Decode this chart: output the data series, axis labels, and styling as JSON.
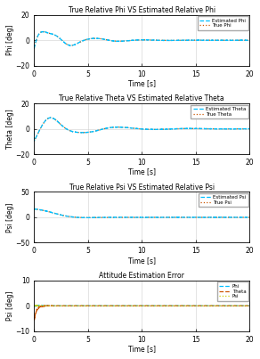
{
  "title1": "True Relative Phi VS Estimated Relative Phi",
  "title2": "True Relative Theta VS Estimated Relative Theta",
  "title3": "True Relative Psi VS Estimated Relative Psi",
  "title4": "Attitude Estimation Error",
  "ylabel1": "Phi [deg]",
  "ylabel2": "Theta [deg]",
  "ylabel3": "Psi [deg]",
  "ylabel4": "Psi [deg]",
  "xlabel": "Time [s]",
  "xlim": [
    0,
    20
  ],
  "ylim1": [
    -20,
    20
  ],
  "ylim2": [
    -20,
    20
  ],
  "ylim3": [
    -50,
    50
  ],
  "ylim4": [
    -10,
    10
  ],
  "yticks1": [
    -20,
    0,
    20
  ],
  "yticks2": [
    -20,
    0,
    20
  ],
  "yticks3": [
    -50,
    0,
    50
  ],
  "yticks4": [
    -10,
    0,
    10
  ],
  "xticks": [
    0,
    5,
    10,
    15,
    20
  ],
  "estimated_color": "#00BFFF",
  "true_color": "#CC5500",
  "error_phi_color": "#00BFFF",
  "error_theta_color": "#CC5500",
  "error_psi_color": "#CCCC00",
  "bg_color": "#FFFFFF",
  "grid_color": "#D0D0D0",
  "legend1": [
    "Estimated Phi",
    "True Phi"
  ],
  "legend2": [
    "Estimated Theta",
    "True Theta"
  ],
  "legend3": [
    "Estimated Psi",
    "True Psi"
  ],
  "legend4": [
    "Phi",
    "Theta",
    "Psi"
  ]
}
